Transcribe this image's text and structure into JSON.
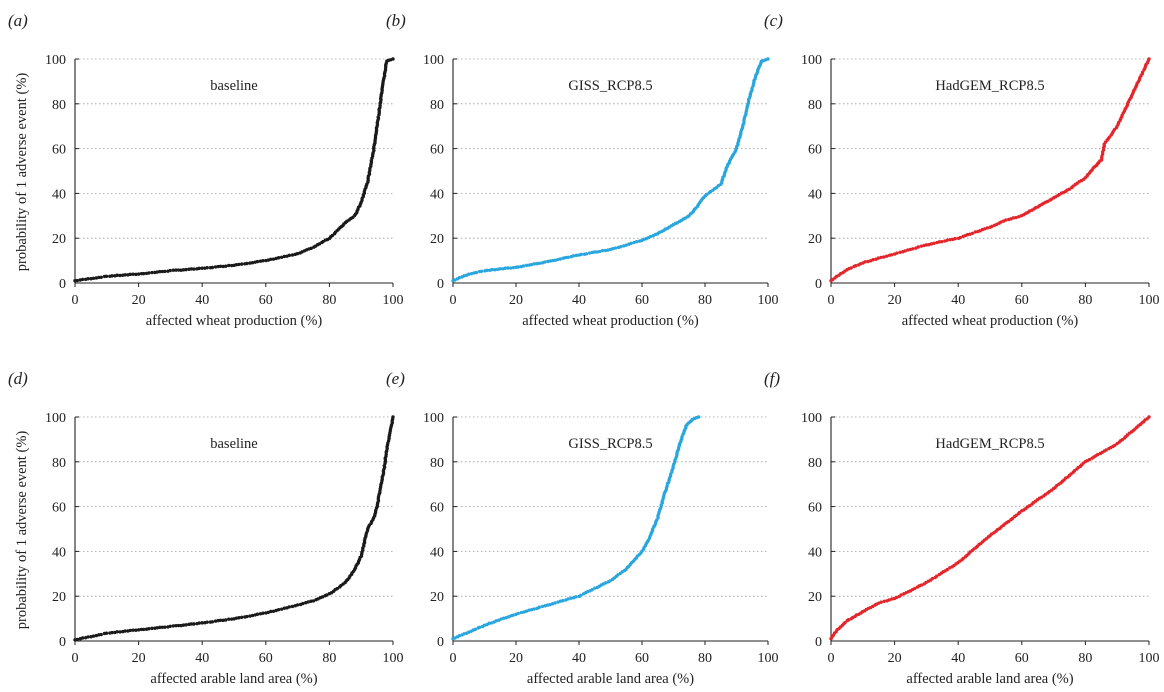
{
  "figure": {
    "ylabel": "probability of 1 adverse event (%)"
  },
  "chart_data": [
    {
      "panel": "(a)",
      "type": "scatter",
      "title": "baseline",
      "xlabel": "affected wheat production (%)",
      "ylabel": "probability of 1 adverse event (%)",
      "xlim": [
        0,
        100
      ],
      "ylim": [
        0,
        100
      ],
      "xticks": [
        0,
        20,
        40,
        60,
        80,
        100
      ],
      "yticks": [
        0,
        20,
        40,
        60,
        80,
        100
      ],
      "grid": "horizontal dotted",
      "color": "#1a1a1a",
      "x": [
        0,
        5,
        10,
        20,
        30,
        40,
        50,
        60,
        65,
        70,
        75,
        80,
        83,
        85,
        88,
        90,
        92,
        94,
        95,
        96,
        97,
        98,
        100
      ],
      "y": [
        1,
        2,
        3,
        4,
        5.5,
        6.5,
        8,
        10,
        11.5,
        13,
        16,
        20,
        24,
        27,
        30,
        36,
        45,
        60,
        70,
        80,
        90,
        99,
        100
      ]
    },
    {
      "panel": "(b)",
      "type": "scatter",
      "title": "GISS_RCP8.5",
      "xlabel": "affected wheat production (%)",
      "xlim": [
        0,
        100
      ],
      "ylim": [
        0,
        100
      ],
      "xticks": [
        0,
        20,
        40,
        60,
        80,
        100
      ],
      "yticks": [
        0,
        20,
        40,
        60,
        80,
        100
      ],
      "grid": "horizontal dotted",
      "color": "#2aa6df",
      "x": [
        0,
        5,
        10,
        20,
        30,
        40,
        50,
        60,
        65,
        70,
        75,
        78,
        80,
        85,
        87,
        90,
        92,
        94,
        96,
        98,
        100
      ],
      "y": [
        1,
        4,
        5.5,
        7,
        9.5,
        12.5,
        15,
        19,
        22,
        26,
        30,
        35,
        39,
        44,
        52,
        60,
        70,
        82,
        92,
        99,
        100
      ]
    },
    {
      "panel": "(c)",
      "type": "scatter",
      "title": "HadGEM_RCP8.5",
      "xlabel": "affected wheat production (%)",
      "xlim": [
        0,
        100
      ],
      "ylim": [
        0,
        100
      ],
      "xticks": [
        0,
        20,
        40,
        60,
        80,
        100
      ],
      "yticks": [
        0,
        20,
        40,
        60,
        80,
        100
      ],
      "grid": "horizontal dotted",
      "color": "#e3262b",
      "x": [
        0,
        5,
        10,
        20,
        30,
        40,
        50,
        55,
        60,
        65,
        70,
        75,
        80,
        83,
        85,
        86,
        90,
        95,
        100
      ],
      "y": [
        1,
        6,
        9,
        13,
        17,
        20,
        25,
        28,
        30,
        34,
        38,
        42,
        47,
        52,
        55,
        62,
        70,
        85,
        100
      ]
    },
    {
      "panel": "(d)",
      "type": "scatter",
      "title": "baseline",
      "xlabel": "affected arable land area (%)",
      "ylabel": "probability of 1 adverse event (%)",
      "xlim": [
        0,
        100
      ],
      "ylim": [
        0,
        100
      ],
      "xticks": [
        0,
        20,
        40,
        60,
        80,
        100
      ],
      "yticks": [
        0,
        20,
        40,
        60,
        80,
        100
      ],
      "grid": "horizontal dotted",
      "color": "#1a1a1a",
      "x": [
        0,
        5,
        10,
        20,
        30,
        40,
        50,
        60,
        70,
        75,
        80,
        85,
        88,
        90,
        92,
        94,
        95,
        96,
        97,
        98,
        99,
        100
      ],
      "y": [
        0.5,
        2,
        3.5,
        5,
        6.5,
        8,
        10,
        12.5,
        16,
        18,
        21,
        26,
        32,
        38,
        50,
        55,
        60,
        68,
        75,
        85,
        92,
        100
      ]
    },
    {
      "panel": "(e)",
      "type": "scatter",
      "title": "GISS_RCP8.5",
      "xlabel": "affected arable land area (%)",
      "xlim": [
        0,
        100
      ],
      "ylim": [
        0,
        100
      ],
      "xticks": [
        0,
        20,
        40,
        60,
        80,
        100
      ],
      "yticks": [
        0,
        20,
        40,
        60,
        80,
        100
      ],
      "grid": "horizontal dotted",
      "color": "#2aa6df",
      "x": [
        0,
        5,
        10,
        20,
        30,
        40,
        50,
        55,
        60,
        62,
        65,
        67,
        70,
        72,
        74,
        76,
        78
      ],
      "y": [
        1,
        4,
        7,
        12,
        16,
        20,
        27,
        32,
        40,
        45,
        55,
        65,
        78,
        88,
        96,
        99,
        100
      ]
    },
    {
      "panel": "(f)",
      "type": "scatter",
      "title": "HadGEM_RCP8.5",
      "xlabel": "affected arable land area (%)",
      "xlim": [
        0,
        100
      ],
      "ylim": [
        0,
        100
      ],
      "xticks": [
        0,
        20,
        40,
        60,
        80,
        100
      ],
      "yticks": [
        0,
        20,
        40,
        60,
        80,
        100
      ],
      "grid": "horizontal dotted",
      "color": "#e3262b",
      "x": [
        0,
        2,
        5,
        10,
        15,
        20,
        30,
        40,
        50,
        60,
        70,
        80,
        90,
        100
      ],
      "y": [
        1,
        5,
        9,
        13,
        17,
        19,
        26,
        35,
        47,
        58,
        68,
        80,
        88,
        100
      ]
    }
  ]
}
